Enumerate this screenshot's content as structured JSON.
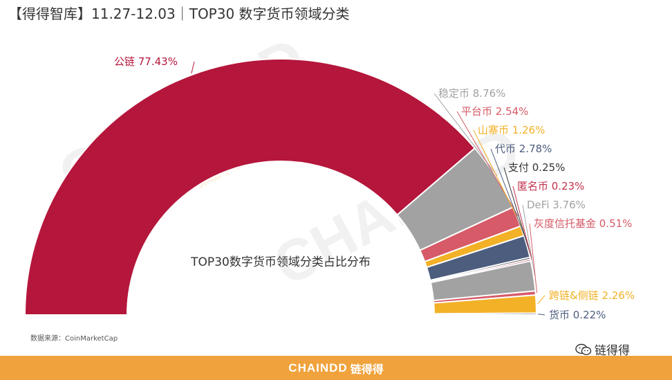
{
  "header": {
    "title": "【得得智库】11.27-12.03｜TOP30 数字货币领域分类"
  },
  "chart_data": {
    "type": "pie",
    "variant": "semi-donut",
    "title": "TOP30数字货币领域分类占比分布",
    "unit": "%",
    "slices": [
      {
        "name": "公链",
        "value": 77.43,
        "label": "公链 77.43%",
        "color": "#b5163b"
      },
      {
        "name": "稳定币",
        "value": 8.76,
        "label": "稳定币 8.76%",
        "color": "#a2a2a2"
      },
      {
        "name": "平台币",
        "value": 2.54,
        "label": "平台币 2.54%",
        "color": "#d65a67"
      },
      {
        "name": "山寨币",
        "value": 1.26,
        "label": "山寨币 1.26%",
        "color": "#f2b126"
      },
      {
        "name": "代币",
        "value": 2.78,
        "label": "代币 2.78%",
        "color": "#4c5d7e"
      },
      {
        "name": "支付",
        "value": 0.25,
        "label": "支付 0.25%",
        "color": "#222222"
      },
      {
        "name": "匿名币",
        "value": 0.23,
        "label": "匿名币 0.23%",
        "color": "#c2324d"
      },
      {
        "name": "DeFi",
        "value": 3.76,
        "label": "DeFi 3.76%",
        "color": "#a2a2a2"
      },
      {
        "name": "灰度信托基金",
        "value": 0.51,
        "label": "灰度信托基金 0.51%",
        "color": "#d65a67"
      },
      {
        "name": "跨链&侧链",
        "value": 2.26,
        "label": "跨链&侧链 2.26%",
        "color": "#f2b126"
      },
      {
        "name": "货币",
        "value": 0.22,
        "label": "货币 0.22%",
        "color": "#4c5d7e"
      }
    ],
    "legend": "callout labels"
  },
  "source": "数据来源：CoinMarketCap",
  "watermark": {
    "text": "CHAINDD",
    "cn": "链得得"
  },
  "wechat": {
    "account": "链得得",
    "icon": "wechat-icon"
  },
  "footer": {
    "brand": "CHAINDD",
    "brand_cn": "链得得",
    "background": "#f0a23c"
  }
}
